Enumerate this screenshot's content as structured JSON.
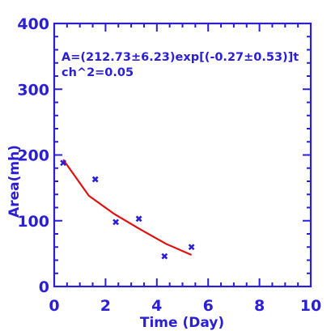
{
  "chart_data": {
    "type": "scatter",
    "xlabel": "Time (Day)",
    "ylabel": "Area(mh)",
    "xlim": [
      0,
      10
    ],
    "ylim": [
      0,
      400
    ],
    "xticks": [
      0,
      2,
      4,
      6,
      8,
      10
    ],
    "yticks": [
      0,
      100,
      200,
      300,
      400
    ],
    "x_tick_labels": [
      "0",
      "2",
      "4",
      "6",
      "8",
      "10"
    ],
    "y_tick_labels": [
      "0",
      "100",
      "200",
      "300",
      "400"
    ],
    "annotations": [
      "A=(212.73±6.23)exp[(-0.27±0.53)]t",
      "ch^2=0.05"
    ],
    "grid": false,
    "colors": {
      "axes": "#2b1fd6",
      "points": "#2b1fd6",
      "fit": "#e01010"
    },
    "series": [
      {
        "kind": "points",
        "x": [
          0.35,
          1.6,
          2.4,
          3.3,
          4.3,
          5.35
        ],
        "y": [
          188,
          163,
          98,
          103,
          46,
          60
        ]
      },
      {
        "kind": "fit",
        "x": [
          0.35,
          1.35,
          2.35,
          3.35,
          4.35,
          5.35
        ],
        "y": [
          193,
          138,
          110,
          87,
          65,
          48
        ]
      }
    ]
  }
}
